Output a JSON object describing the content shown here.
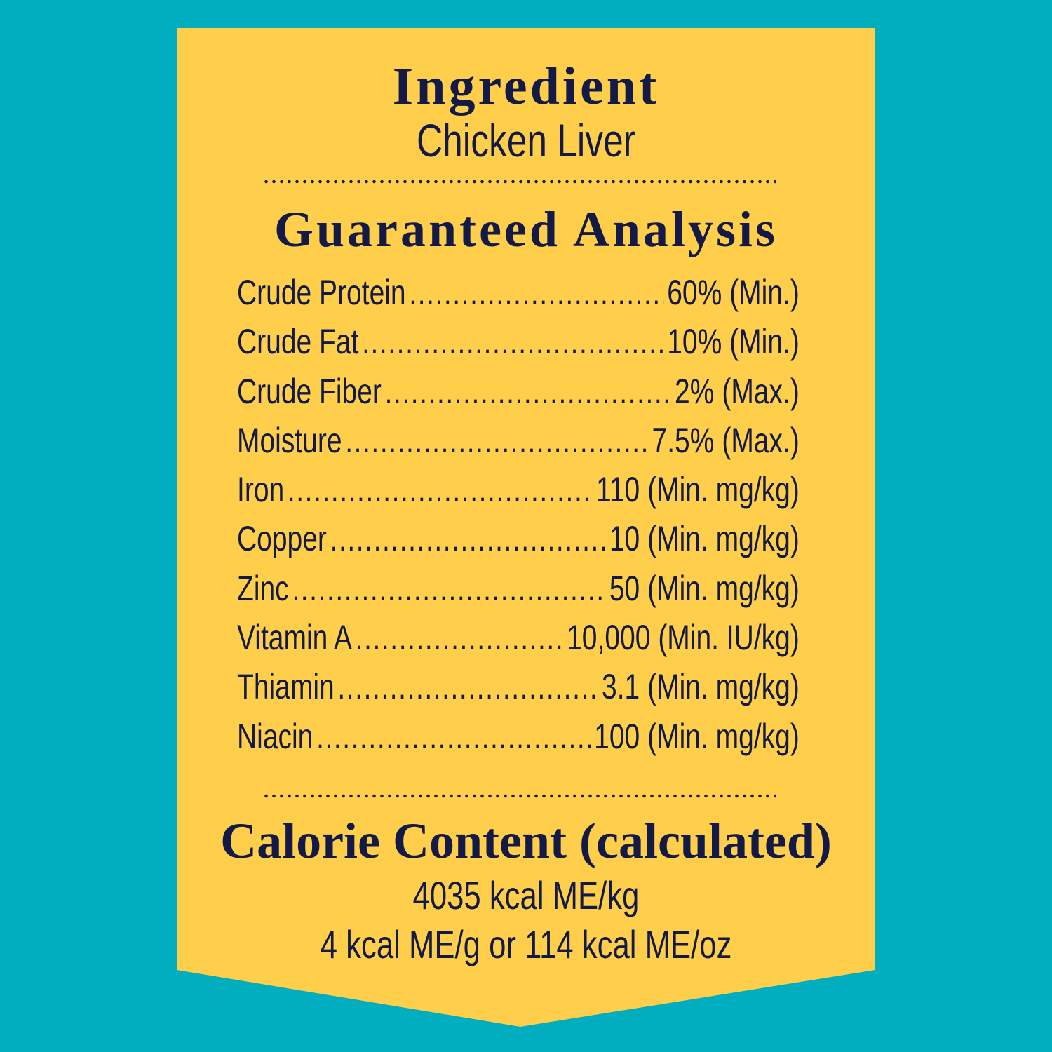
{
  "colors": {
    "background": "#00aebf",
    "banner": "#ffce4a",
    "text": "#141a48"
  },
  "ingredient": {
    "heading": "Ingredient",
    "value": "Chicken Liver"
  },
  "analysis": {
    "heading": "Guaranteed Analysis",
    "rows": [
      {
        "name": "Crude Protein",
        "value": "60%",
        "unit": "(Min.)"
      },
      {
        "name": "Crude Fat",
        "value": "10%",
        "unit": "(Min.)"
      },
      {
        "name": "Crude Fiber",
        "value": "2%",
        "unit": "(Max.)"
      },
      {
        "name": "Moisture",
        "value": "7.5%",
        "unit": "(Max.)"
      },
      {
        "name": "Iron",
        "value": "110",
        "unit": "(Min. mg/kg)"
      },
      {
        "name": "Copper",
        "value": "10",
        "unit": "(Min. mg/kg)"
      },
      {
        "name": "Zinc",
        "value": "50",
        "unit": "(Min. mg/kg)"
      },
      {
        "name": "Vitamin A",
        "value": "10,000",
        "unit": "(Min. IU/kg)"
      },
      {
        "name": "Thiamin",
        "value": "3.1",
        "unit": "(Min. mg/kg)"
      },
      {
        "name": "Niacin",
        "value": "100",
        "unit": "(Min. mg/kg)"
      }
    ]
  },
  "calorie": {
    "heading": "Calorie Content (calculated)",
    "line1": "4035 kcal ME/kg",
    "line2": "4 kcal ME/g or 114 kcal ME/oz"
  }
}
